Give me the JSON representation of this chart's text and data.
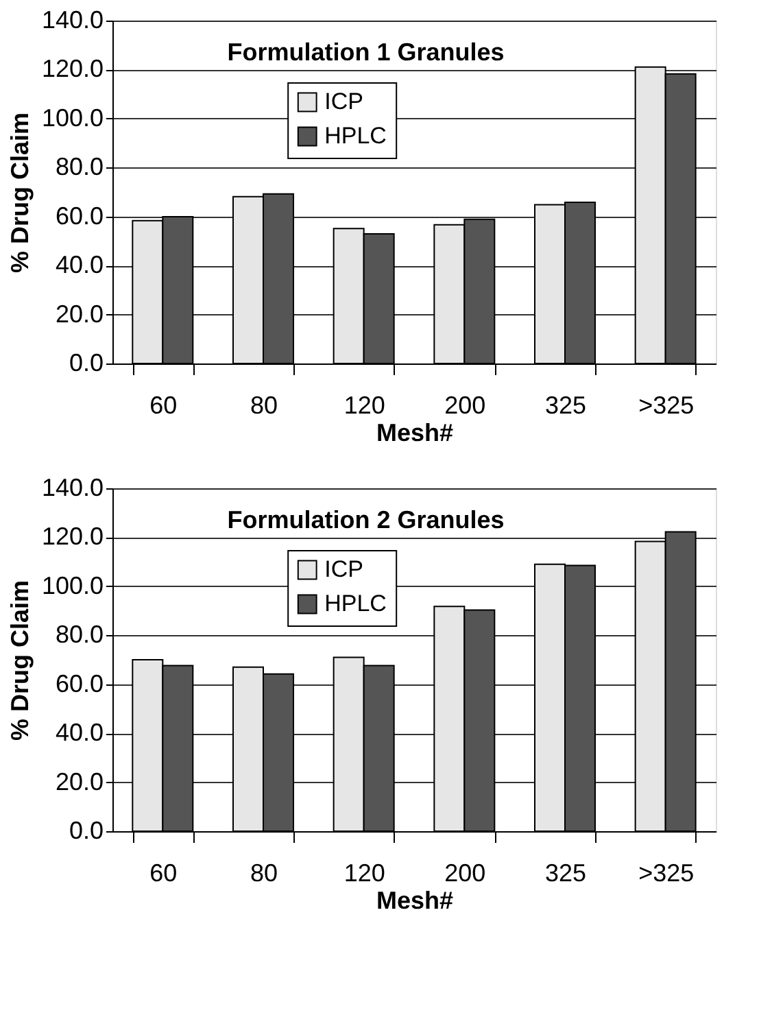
{
  "chart_data": [
    {
      "type": "bar",
      "title": "Formulation 1 Granules",
      "xlabel": "Mesh#",
      "ylabel": "% Drug  Claim",
      "categories": [
        "60",
        "80",
        "120",
        "200",
        "325",
        ">325"
      ],
      "series": [
        {
          "name": "ICP",
          "color": "#e6e6e6",
          "values": [
            58.3,
            68.1,
            55.1,
            56.6,
            64.8,
            121.0
          ]
        },
        {
          "name": "HPLC",
          "color": "#555555",
          "values": [
            59.9,
            69.2,
            52.9,
            58.9,
            65.8,
            118.2
          ]
        }
      ],
      "ylim": [
        0,
        140
      ],
      "yticks": [
        {
          "value": 0,
          "label": "0.0"
        },
        {
          "value": 20,
          "label": "20.0"
        },
        {
          "value": 40,
          "label": "40.0"
        },
        {
          "value": 60,
          "label": "60.0"
        },
        {
          "value": 80,
          "label": "80.0"
        },
        {
          "value": 100,
          "label": "100.0"
        },
        {
          "value": 120,
          "label": "120.0"
        },
        {
          "value": 140,
          "label": "140.0"
        }
      ],
      "grid": "y",
      "legend": "top"
    },
    {
      "type": "bar",
      "title": "Formulation 2 Granules",
      "xlabel": "Mesh#",
      "ylabel": "% Drug  Claim",
      "categories": [
        "60",
        "80",
        "120",
        "200",
        "325",
        ">325"
      ],
      "series": [
        {
          "name": "ICP",
          "color": "#e6e6e6",
          "values": [
            70.0,
            67.0,
            71.0,
            91.8,
            109.0,
            118.3
          ]
        },
        {
          "name": "HPLC",
          "color": "#555555",
          "values": [
            67.6,
            64.2,
            67.6,
            90.3,
            108.5,
            122.2
          ]
        }
      ],
      "ylim": [
        0,
        140
      ],
      "yticks": [
        {
          "value": 0,
          "label": "0.0"
        },
        {
          "value": 20,
          "label": "20.0"
        },
        {
          "value": 40,
          "label": "40.0"
        },
        {
          "value": 60,
          "label": "60.0"
        },
        {
          "value": 80,
          "label": "80.0"
        },
        {
          "value": 100,
          "label": "100.0"
        },
        {
          "value": 120,
          "label": "120.0"
        },
        {
          "value": 140,
          "label": "140.0"
        }
      ],
      "grid": "y",
      "legend": "top"
    }
  ]
}
